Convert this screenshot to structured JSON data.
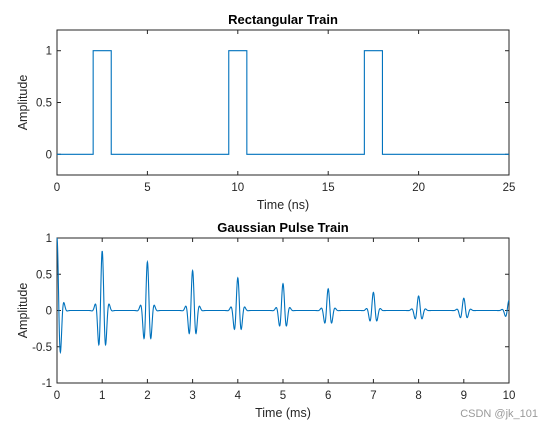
{
  "chart_data": [
    {
      "type": "line",
      "title": "Rectangular Train",
      "xlabel": "Time (ns)",
      "ylabel": "Amplitude",
      "xlim": [
        0,
        25
      ],
      "ylim": [
        -0.2,
        1.2
      ],
      "xticks": [
        0,
        5,
        10,
        15,
        20,
        25
      ],
      "yticks": [
        0,
        0.5,
        1
      ],
      "ytick_labels": [
        "0",
        "0.5",
        "1"
      ],
      "series": [
        {
          "color": "#0072BD",
          "x": [
            0,
            2.0,
            2.0,
            3.0,
            3.0,
            9.5,
            9.5,
            10.5,
            10.5,
            17.0,
            17.0,
            18.0,
            18.0,
            25
          ],
          "y": [
            0,
            0,
            1,
            1,
            0,
            0,
            1,
            1,
            0,
            0,
            1,
            1,
            0,
            0
          ]
        }
      ]
    },
    {
      "type": "line",
      "title": "Gaussian Pulse Train",
      "xlabel": "Time (ms)",
      "ylabel": "Amplitude",
      "xlim": [
        0,
        10
      ],
      "ylim": [
        -1,
        1
      ],
      "xticks": [
        0,
        1,
        2,
        3,
        4,
        5,
        6,
        7,
        8,
        9,
        10
      ],
      "yticks": [
        -1,
        -0.5,
        0,
        0.5,
        1
      ],
      "ytick_labels": [
        "-1",
        "-0.5",
        "0",
        "0.5",
        "1"
      ],
      "pulse_centers": [
        0,
        1,
        2,
        3,
        4,
        5,
        6,
        7,
        8,
        9,
        10
      ],
      "pulse_peaks": [
        1.0,
        0.82,
        0.67,
        0.55,
        0.45,
        0.37,
        0.3,
        0.25,
        0.2,
        0.17,
        0.14
      ],
      "series": [
        {
          "color": "#0072BD"
        }
      ]
    }
  ],
  "watermark": "CSDN @jk_101"
}
